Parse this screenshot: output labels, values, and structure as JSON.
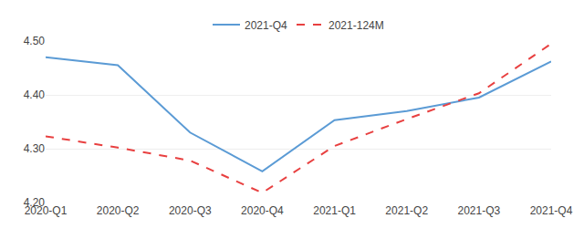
{
  "chart_data": {
    "type": "line",
    "categories": [
      "2020-Q1",
      "2020-Q2",
      "2020-Q3",
      "2020-Q4",
      "2021-Q1",
      "2021-Q2",
      "2021-Q3",
      "2021-Q4"
    ],
    "series": [
      {
        "name": "2021-Q4",
        "color": "#5b9bd5",
        "line_style": "solid",
        "values": [
          4.47,
          4.455,
          4.33,
          4.258,
          4.353,
          4.37,
          4.395,
          4.462
        ]
      },
      {
        "name": "2021-124M",
        "color": "#e84040",
        "line_style": "dashed",
        "values": [
          4.323,
          4.302,
          4.278,
          4.218,
          4.305,
          4.355,
          4.403,
          4.495
        ]
      }
    ],
    "ylim": [
      4.2,
      4.5
    ],
    "yticks": [
      {
        "value": 4.2,
        "label": "4.20"
      },
      {
        "value": 4.3,
        "label": "4.30"
      },
      {
        "value": 4.4,
        "label": "4.40"
      },
      {
        "value": 4.5,
        "label": "4.50"
      }
    ],
    "grid": true,
    "legend": "top"
  }
}
